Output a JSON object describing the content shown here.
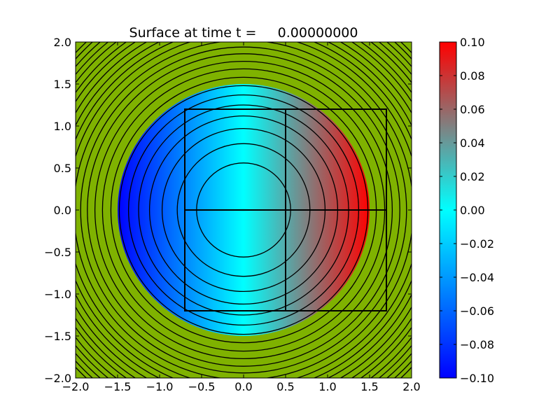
{
  "chart_data": {
    "type": "heatmap",
    "title": "Surface at time t =     0.00000000",
    "xlabel": "",
    "ylabel": "",
    "xlim": [
      -2.0,
      2.0
    ],
    "ylim": [
      -2.0,
      2.0
    ],
    "x_ticks": [
      "−2.0",
      "−1.5",
      "−1.0",
      "−0.5",
      "0.0",
      "0.5",
      "1.0",
      "1.5",
      "2.0"
    ],
    "y_ticks": [
      "−2.0",
      "−1.5",
      "−1.0",
      "−0.5",
      "0.0",
      "0.5",
      "1.0",
      "1.5",
      "2.0"
    ],
    "x_tick_values": [
      -2.0,
      -1.5,
      -1.0,
      -0.5,
      0.0,
      0.5,
      1.0,
      1.5,
      2.0
    ],
    "y_tick_values": [
      -2.0,
      -1.5,
      -1.0,
      -0.5,
      0.0,
      0.5,
      1.0,
      1.5,
      2.0
    ],
    "background_color": "#7fb200",
    "surface": {
      "region": "disk",
      "center": [
        0.0,
        0.0
      ],
      "radius": 1.5,
      "value_min": -0.1,
      "value_max": 0.1
    },
    "contours": {
      "center": [
        0.0,
        0.0
      ],
      "radii": [
        0.56,
        0.79,
        0.97,
        1.12,
        1.25,
        1.37,
        1.48,
        1.58,
        1.68,
        1.77,
        1.86,
        1.94,
        2.02,
        2.1,
        2.17,
        2.24,
        2.31,
        2.38,
        2.44,
        2.51,
        2.57,
        2.63,
        2.69,
        2.74
      ],
      "color": "#000000"
    },
    "grid_boxes": [
      {
        "x": [
          -0.7,
          0.5
        ],
        "y": [
          -1.2,
          0.0
        ]
      },
      {
        "x": [
          -0.7,
          0.5
        ],
        "y": [
          0.0,
          1.2
        ]
      },
      {
        "x": [
          0.5,
          1.7
        ],
        "y": [
          -1.2,
          0.0
        ]
      },
      {
        "x": [
          0.5,
          1.7
        ],
        "y": [
          0.0,
          1.2
        ]
      }
    ],
    "colorbar": {
      "range": [
        -0.1,
        0.1
      ],
      "ticks": [
        "−0.10",
        "−0.08",
        "−0.06",
        "−0.04",
        "−0.02",
        "0.00",
        "0.02",
        "0.04",
        "0.06",
        "0.08",
        "0.10"
      ],
      "tick_values": [
        -0.1,
        -0.08,
        -0.06,
        -0.04,
        -0.02,
        0.0,
        0.02,
        0.04,
        0.06,
        0.08,
        0.1
      ],
      "stops": [
        {
          "value": -0.1,
          "color": "#0000ff"
        },
        {
          "value": 0.0,
          "color": "#00ffff"
        },
        {
          "value": 0.05,
          "color": "#808080"
        },
        {
          "value": 0.1,
          "color": "#ff0000"
        }
      ]
    }
  }
}
